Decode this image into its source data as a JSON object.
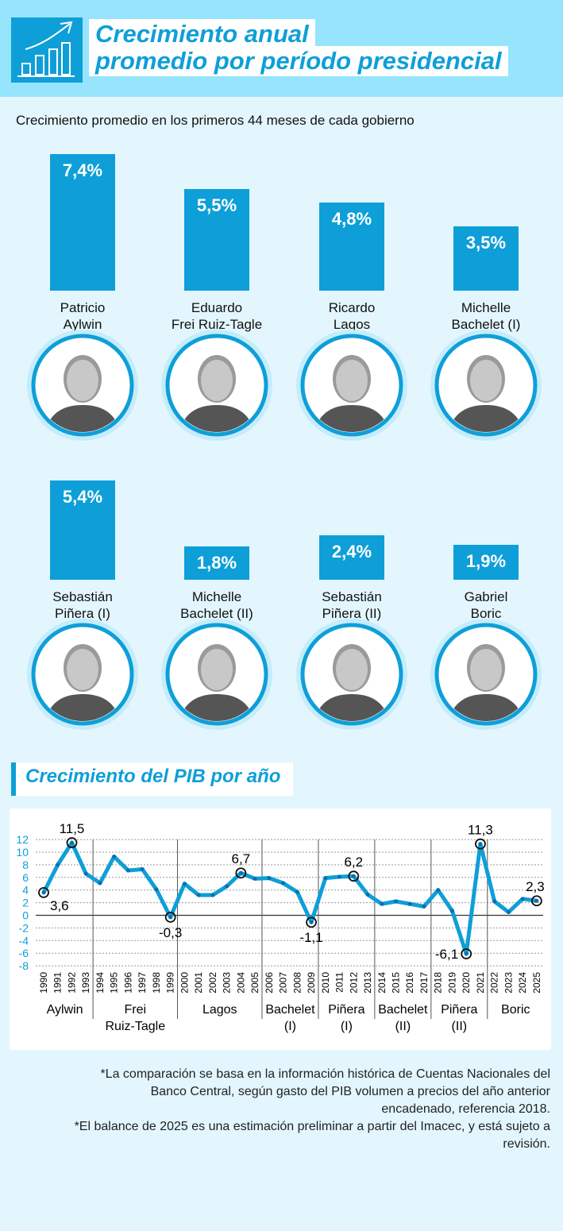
{
  "header": {
    "title_line1": "Crecimiento anual",
    "title_line2": "promedio por período presidencial",
    "icon": "growth-chart-icon"
  },
  "subtitle": "Crecimiento promedio en los primeros 44 meses de cada gobierno",
  "presidents": [
    {
      "name1": "Patricio",
      "name2": "Aylwin",
      "value": 7.4,
      "label": "7,4%"
    },
    {
      "name1": "Eduardo",
      "name2": "Frei Ruiz-Tagle",
      "value": 5.5,
      "label": "5,5%"
    },
    {
      "name1": "Ricardo",
      "name2": "Lagos",
      "value": 4.8,
      "label": "4,8%"
    },
    {
      "name1": "Michelle",
      "name2": "Bachelet (I)",
      "value": 3.5,
      "label": "3,5%"
    },
    {
      "name1": "Sebastián",
      "name2": "Piñera (I)",
      "value": 5.4,
      "label": "5,4%"
    },
    {
      "name1": "Michelle",
      "name2": "Bachelet (II)",
      "value": 1.8,
      "label": "1,8%"
    },
    {
      "name1": "Sebastián",
      "name2": "Piñera (II)",
      "value": 2.4,
      "label": "2,4%"
    },
    {
      "name1": "Gabriel",
      "name2": "Boric",
      "value": 1.9,
      "label": "1,9%"
    }
  ],
  "section2_title": "Crecimiento del PIB por año",
  "colors": {
    "accent": "#0e9fd8",
    "header_bg": "#97e4fd",
    "page_bg": "#e3f6fe"
  },
  "chart_data": [
    {
      "type": "bar",
      "title": "Crecimiento promedio en los primeros 44 meses de cada gobierno",
      "categories": [
        "Patricio Aylwin",
        "Eduardo Frei Ruiz-Tagle",
        "Ricardo Lagos",
        "Michelle Bachelet (I)",
        "Sebastián Piñera (I)",
        "Michelle Bachelet (II)",
        "Sebastián Piñera (II)",
        "Gabriel Boric"
      ],
      "values": [
        7.4,
        5.5,
        4.8,
        3.5,
        5.4,
        1.8,
        2.4,
        1.9
      ],
      "unit": "%"
    },
    {
      "type": "line",
      "title": "Crecimiento del PIB por año",
      "ylim": [
        -8,
        12
      ],
      "yticks": [
        12,
        10,
        8,
        6,
        4,
        2,
        0,
        -2,
        -4,
        -6,
        -8
      ],
      "grid": true,
      "x": [
        1990,
        1991,
        1992,
        1993,
        1994,
        1995,
        1996,
        1997,
        1998,
        1999,
        2000,
        2001,
        2002,
        2003,
        2004,
        2005,
        2006,
        2007,
        2008,
        2009,
        2010,
        2011,
        2012,
        2013,
        2014,
        2015,
        2016,
        2017,
        2018,
        2019,
        2020,
        2021,
        2022,
        2023,
        2024,
        2025
      ],
      "y": [
        3.6,
        8.0,
        11.5,
        6.6,
        5.1,
        9.3,
        7.1,
        7.3,
        4.1,
        -0.3,
        5.0,
        3.2,
        3.2,
        4.6,
        6.7,
        5.8,
        5.9,
        5.1,
        3.7,
        -1.1,
        5.9,
        6.1,
        6.2,
        3.3,
        1.8,
        2.2,
        1.8,
        1.4,
        4.0,
        0.7,
        -6.1,
        11.3,
        2.2,
        0.5,
        2.6,
        2.3
      ],
      "annotations": [
        {
          "x": 1990,
          "label": "3,6"
        },
        {
          "x": 1992,
          "label": "11,5"
        },
        {
          "x": 1999,
          "label": "-0,3"
        },
        {
          "x": 2004,
          "label": "6,7"
        },
        {
          "x": 2009,
          "label": "-1,1"
        },
        {
          "x": 2012,
          "label": "6,2"
        },
        {
          "x": 2020,
          "label": "-6,1"
        },
        {
          "x": 2021,
          "label": "11,3"
        },
        {
          "x": 2025,
          "label": "2,3"
        }
      ],
      "periods": [
        {
          "start": 1990,
          "end": 1993,
          "l1": "Aylwin",
          "l2": ""
        },
        {
          "start": 1994,
          "end": 1999,
          "l1": "Frei",
          "l2": "Ruiz-Tagle"
        },
        {
          "start": 2000,
          "end": 2005,
          "l1": "Lagos",
          "l2": ""
        },
        {
          "start": 2006,
          "end": 2009,
          "l1": "Bachelet",
          "l2": "(I)"
        },
        {
          "start": 2010,
          "end": 2013,
          "l1": "Piñera",
          "l2": "(I)"
        },
        {
          "start": 2014,
          "end": 2017,
          "l1": "Bachelet",
          "l2": "(II)"
        },
        {
          "start": 2018,
          "end": 2021,
          "l1": "Piñera",
          "l2": "(II)"
        },
        {
          "start": 2022,
          "end": 2025,
          "l1": "Boric",
          "l2": ""
        }
      ]
    }
  ],
  "notes": [
    "*La comparación se basa en la información histórica de Cuentas Nacionales del Banco Central, según gasto del PIB volumen a precios del año anterior encadenado, referencia 2018.",
    "*El balance de 2025 es una estimación preliminar a partir del Imacec, y está sujeto a revisión."
  ]
}
